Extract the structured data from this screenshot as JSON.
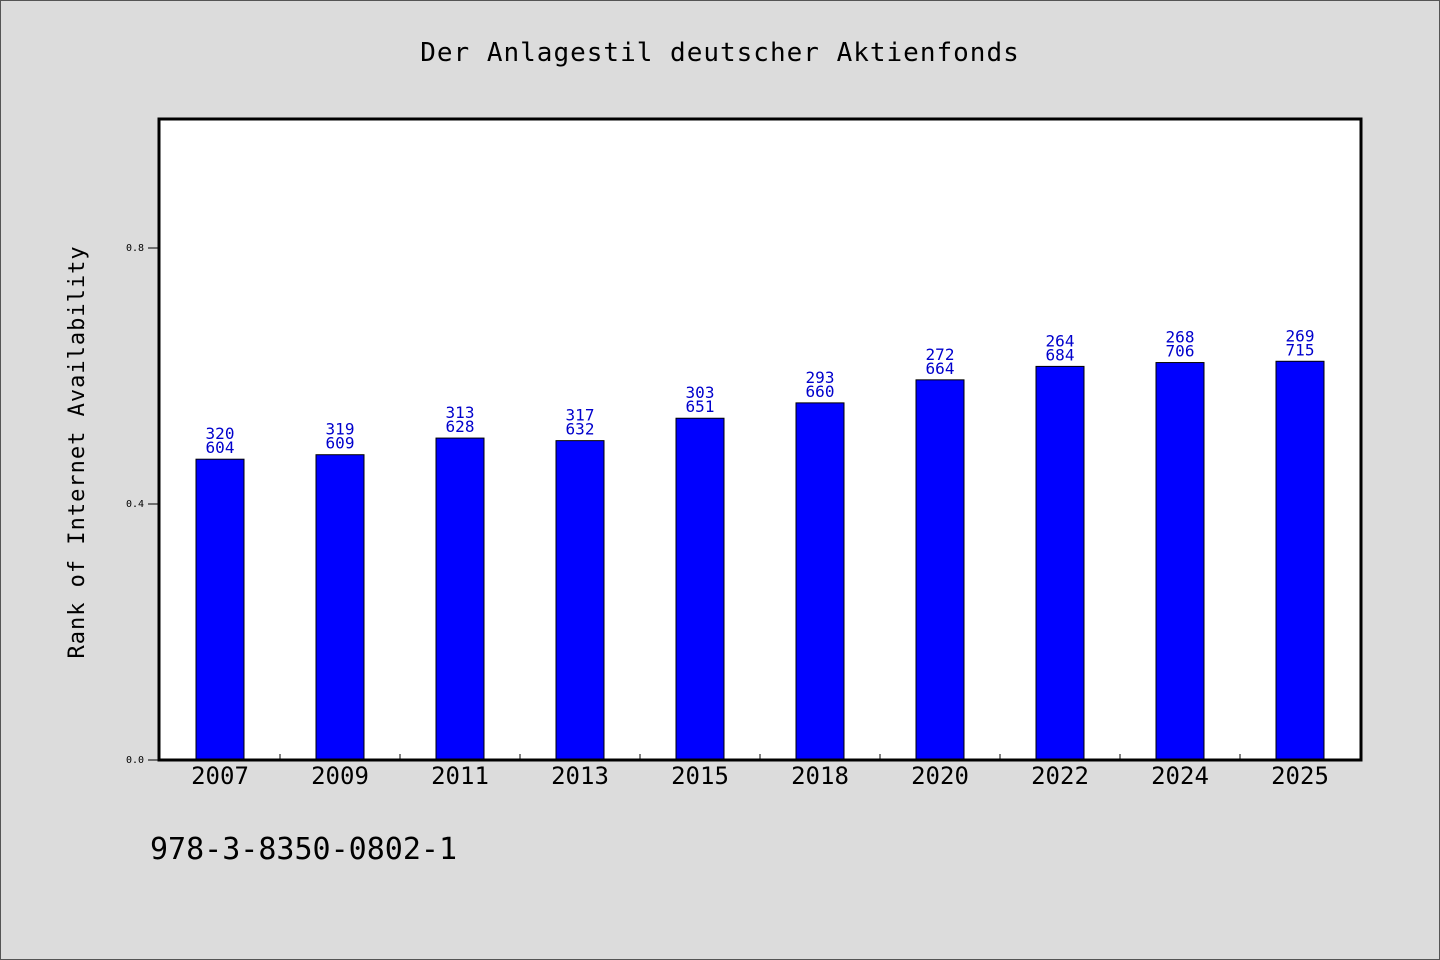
{
  "chart_data": {
    "type": "bar",
    "title": "Der Anlagestil deutscher Aktienfonds",
    "ylabel": "Rank of Internet Availability",
    "xlabel": "",
    "categories": [
      "2007",
      "2009",
      "2011",
      "2013",
      "2015",
      "2018",
      "2020",
      "2022",
      "2024",
      "2025"
    ],
    "values": [
      0.47,
      0.477,
      0.503,
      0.499,
      0.534,
      0.558,
      0.594,
      0.615,
      0.621,
      0.623
    ],
    "labels_top": [
      "320",
      "319",
      "313",
      "317",
      "303",
      "293",
      "272",
      "264",
      "268",
      "269"
    ],
    "labels_bottom": [
      "604",
      "609",
      "628",
      "632",
      "651",
      "660",
      "664",
      "684",
      "706",
      "715"
    ],
    "yticks": [
      0.0,
      0.4,
      0.8
    ],
    "ytick_labels": [
      "0.0",
      "0.4",
      "0.8"
    ],
    "ylim": [
      0,
      1.0
    ],
    "grid": false,
    "colors": {
      "bar": "#0000ff",
      "bar_edge": "#000000",
      "label": "#0000cc"
    }
  },
  "footer": {
    "isbn": "978-3-8350-0802-1"
  }
}
